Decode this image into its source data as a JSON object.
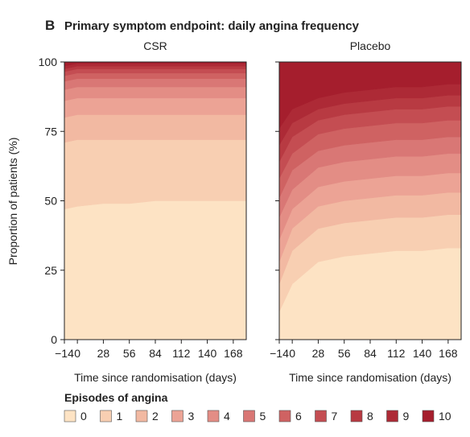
{
  "figure": {
    "panel_letter": "B",
    "title": "Primary symptom endpoint: daily angina frequency",
    "legend_title": "Episodes of angina"
  },
  "chart_data": {
    "type": "area",
    "stacked": true,
    "grid": false,
    "legend_position": "bottom",
    "ylabel": "Proportion of patients (%)",
    "ylim": [
      0,
      100
    ],
    "yticks": [
      "0",
      "25",
      "50",
      "75",
      "100"
    ],
    "xlabel": "Time since randomisation (days)",
    "xlim": [
      -14,
      182
    ],
    "xticks": [
      -14,
      0,
      28,
      56,
      84,
      112,
      140,
      168
    ],
    "xtick_labels": [
      "−14",
      "0",
      "28",
      "56",
      "84",
      "112",
      "140",
      "168"
    ],
    "categories": [
      "0",
      "1",
      "2",
      "3",
      "4",
      "5",
      "6",
      "7",
      "8",
      "9",
      "10"
    ],
    "colors": [
      "#fde3c4",
      "#f8cfb2",
      "#f2b9a2",
      "#eca395",
      "#e38d85",
      "#d97775",
      "#cf6262",
      "#c44d52",
      "#b83a42",
      "#ad2a36",
      "#a51e2d"
    ],
    "panels": [
      {
        "name": "CSR",
        "x": [
          -14,
          0,
          28,
          56,
          84,
          112,
          140,
          168,
          182
        ],
        "series": [
          {
            "name": "0",
            "values": [
              47,
              48,
              49,
              49,
              50,
              50,
              50,
              50,
              50
            ]
          },
          {
            "name": "1",
            "values": [
              24,
              24,
              23,
              23,
              22,
              22,
              22,
              22,
              22
            ]
          },
          {
            "name": "2",
            "values": [
              9,
              9,
              9,
              9,
              9,
              9,
              9,
              9,
              9
            ]
          },
          {
            "name": "3",
            "values": [
              6,
              6,
              6,
              6,
              6,
              6,
              6,
              6,
              6
            ]
          },
          {
            "name": "4",
            "values": [
              4,
              4,
              4,
              4,
              4,
              4,
              4,
              4,
              4
            ]
          },
          {
            "name": "5",
            "values": [
              3,
              3,
              3,
              3,
              3,
              3,
              3,
              3,
              3
            ]
          },
          {
            "name": "6",
            "values": [
              2,
              2,
              2,
              2,
              2,
              2,
              2,
              2,
              2
            ]
          },
          {
            "name": "7",
            "values": [
              1.5,
              1.5,
              1.5,
              1.5,
              1.5,
              1.5,
              1.5,
              1.5,
              1.5
            ]
          },
          {
            "name": "8",
            "values": [
              1,
              1,
              1,
              1,
              1,
              1,
              1,
              1,
              1
            ]
          },
          {
            "name": "9",
            "values": [
              1,
              1,
              1,
              1,
              1,
              1,
              1,
              1,
              1
            ]
          },
          {
            "name": "10",
            "values": [
              1.5,
              0.5,
              0.5,
              0.5,
              0.5,
              0.5,
              0.5,
              0.5,
              0.5
            ]
          }
        ]
      },
      {
        "name": "Placebo",
        "x": [
          -14,
          0,
          28,
          56,
          84,
          112,
          140,
          168,
          182
        ],
        "series": [
          {
            "name": "0",
            "values": [
              10,
              20,
              28,
              30,
              31,
              32,
              32,
              33,
              33
            ]
          },
          {
            "name": "1",
            "values": [
              10,
              12,
              12,
              12,
              12,
              12,
              12,
              12,
              12
            ]
          },
          {
            "name": "2",
            "values": [
              8,
              8,
              8,
              8,
              8,
              8,
              8,
              8,
              8
            ]
          },
          {
            "name": "3",
            "values": [
              8,
              7,
              7,
              7,
              7,
              7,
              7,
              7,
              7
            ]
          },
          {
            "name": "4",
            "values": [
              8,
              7,
              7,
              7,
              7,
              7,
              7,
              7,
              7
            ]
          },
          {
            "name": "5",
            "values": [
              7,
              7,
              6,
              6,
              6,
              6,
              6,
              6,
              6
            ]
          },
          {
            "name": "6",
            "values": [
              7,
              6,
              6,
              6,
              6,
              6,
              6,
              6,
              6
            ]
          },
          {
            "name": "7",
            "values": [
              6,
              6,
              5,
              5,
              5,
              5,
              5,
              5,
              5
            ]
          },
          {
            "name": "8",
            "values": [
              6,
              5,
              4,
              4,
              4,
              4,
              4,
              4,
              4
            ]
          },
          {
            "name": "9",
            "values": [
              6,
              5,
              4,
              4,
              4,
              4,
              4,
              4,
              4
            ]
          },
          {
            "name": "10",
            "values": [
              24,
              17,
              13,
              11,
              10,
              9,
              9,
              8,
              8
            ]
          }
        ]
      }
    ]
  }
}
